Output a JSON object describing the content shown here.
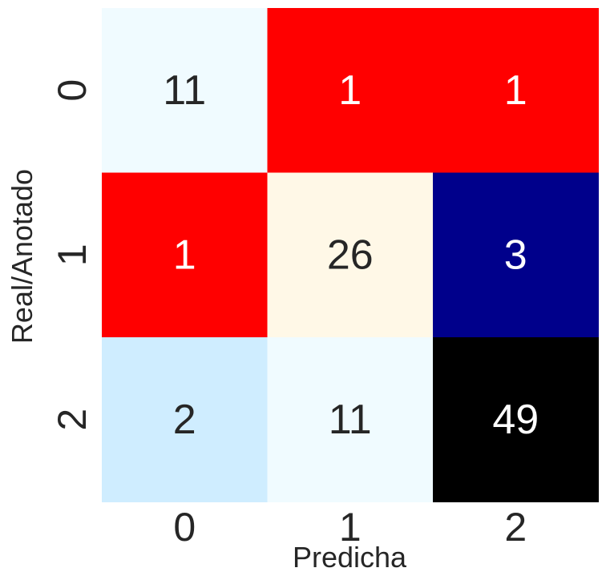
{
  "chart_data": {
    "type": "heatmap",
    "title": "",
    "xlabel": "Predicha",
    "ylabel": "Real/Anotado",
    "x_categories": [
      "0",
      "1",
      "2"
    ],
    "y_categories": [
      "0",
      "1",
      "2"
    ],
    "values": [
      [
        11,
        1,
        1
      ],
      [
        1,
        26,
        3
      ],
      [
        2,
        11,
        49
      ]
    ],
    "cell_colors": [
      [
        "#f0fbff",
        "#ff0000",
        "#ff0000"
      ],
      [
        "#ff0000",
        "#fff8e7",
        "#00008b"
      ],
      [
        "#cfedff",
        "#f0fbff",
        "#000000"
      ]
    ],
    "text_colors": [
      [
        "#262626",
        "#ffffff",
        "#ffffff"
      ],
      [
        "#ffffff",
        "#262626",
        "#ffffff"
      ],
      [
        "#262626",
        "#262626",
        "#ffffff"
      ]
    ],
    "colorbar": false,
    "grid": false
  }
}
